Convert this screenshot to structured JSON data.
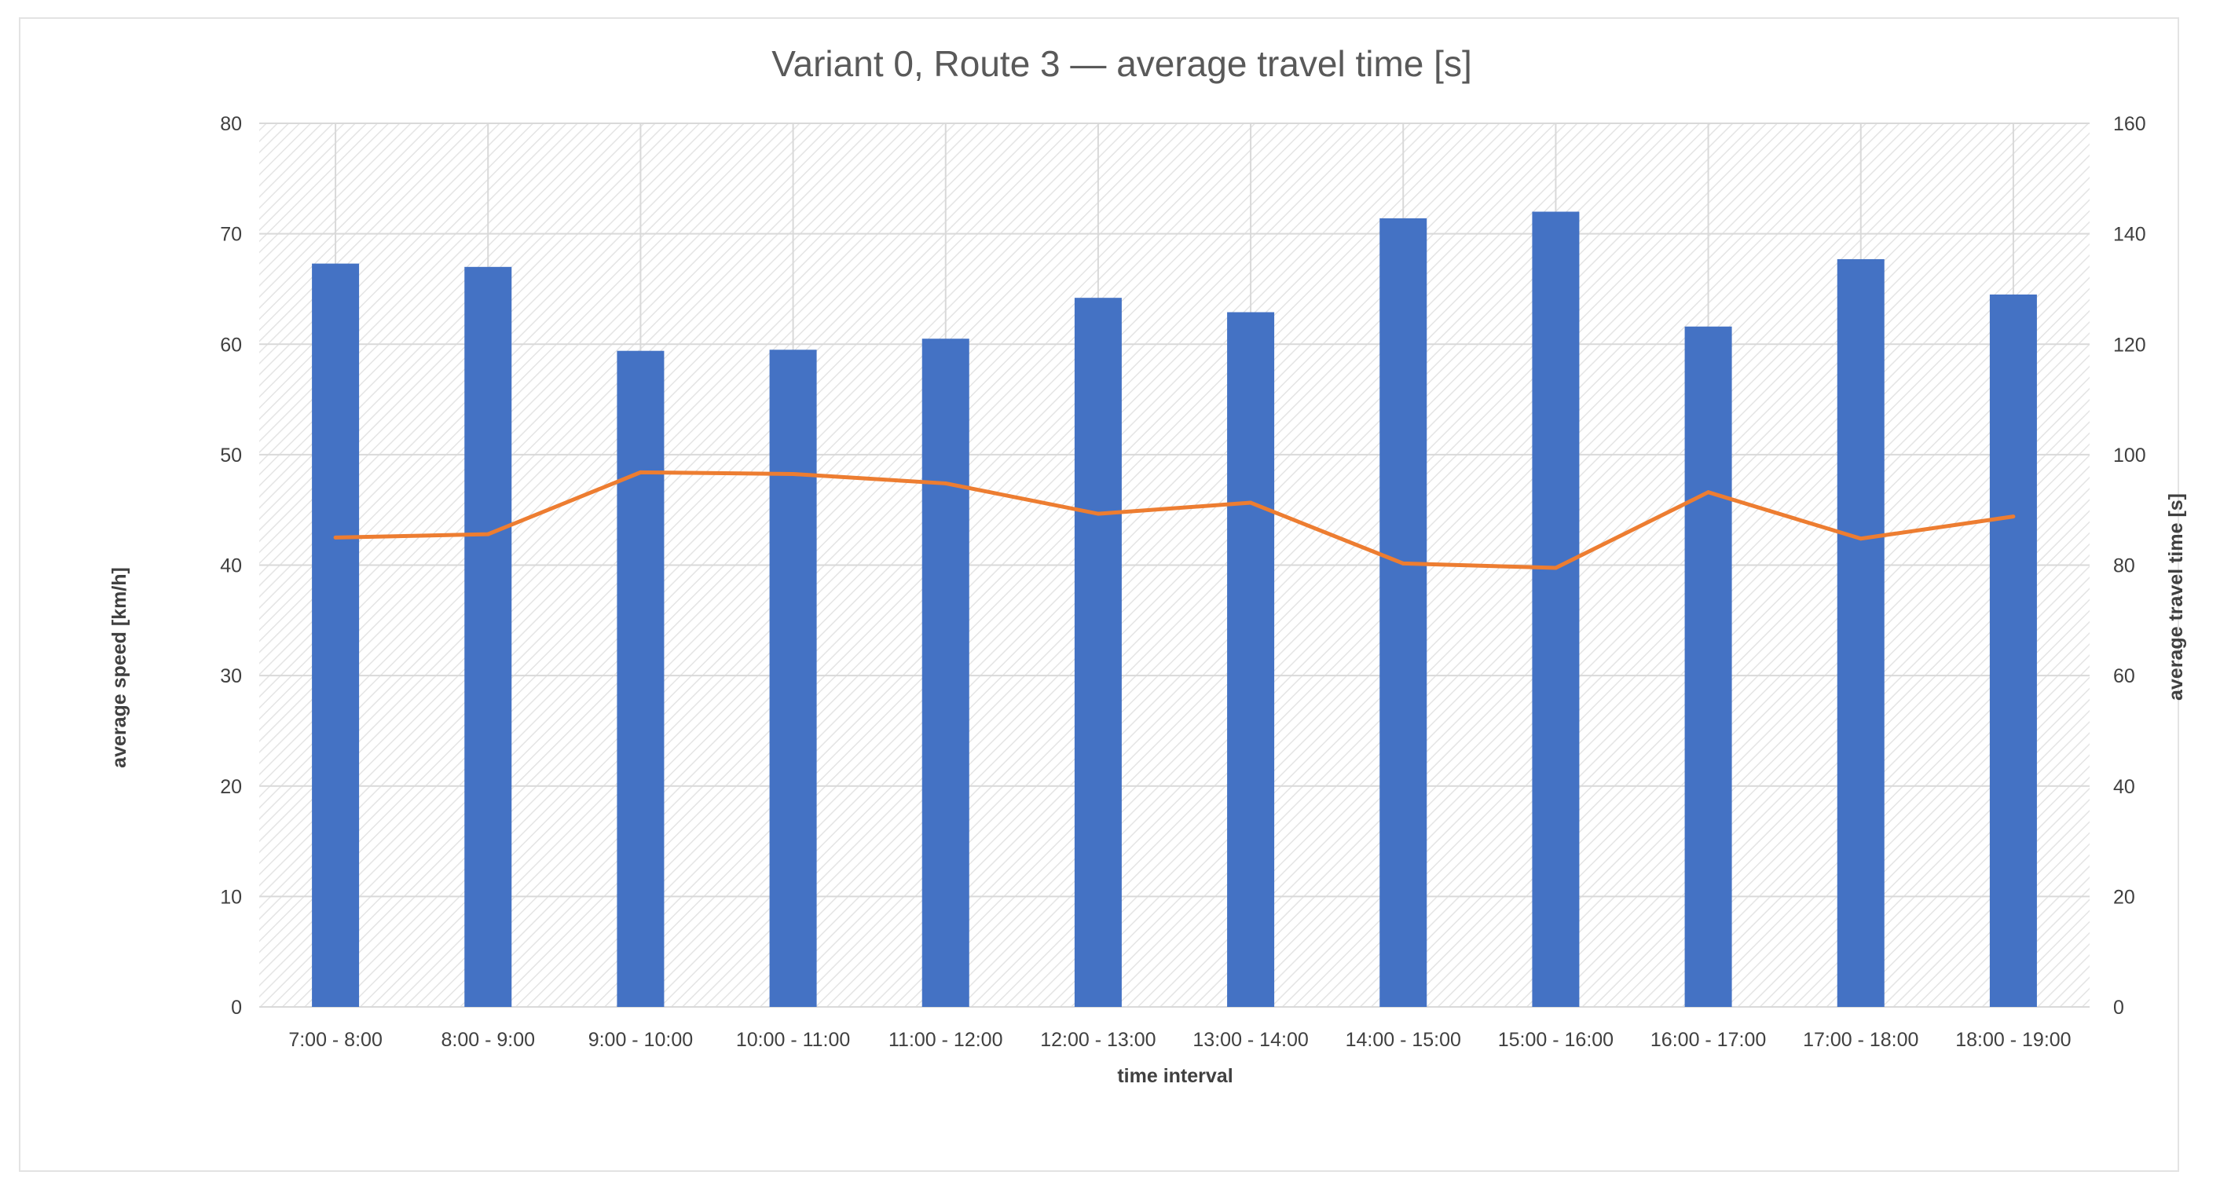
{
  "chart_data": {
    "type": "bar",
    "title": "Variant 0, Route 3 — average travel time [s]",
    "xlabel": "time interval",
    "ylabel": "average speed [km/h]",
    "y2label": "average travel time [s]",
    "ylim": [
      0,
      80
    ],
    "y2lim": [
      0,
      160
    ],
    "yticks": [
      "0",
      "10",
      "20",
      "30",
      "40",
      "50",
      "60",
      "70",
      "80"
    ],
    "y2ticks": [
      "0",
      "20",
      "40",
      "60",
      "80",
      "100",
      "120",
      "140",
      "160"
    ],
    "grid": true,
    "legend": "none",
    "categories": [
      "7:00 - 8:00",
      "8:00 - 9:00",
      "9:00 - 10:00",
      "10:00 - 11:00",
      "11:00 - 12:00",
      "12:00 - 13:00",
      "13:00 - 14:00",
      "14:00 - 15:00",
      "15:00 - 16:00",
      "16:00 - 17:00",
      "17:00 - 18:00",
      "18:00 - 19:00"
    ],
    "series": [
      {
        "type": "bar",
        "axis": "left",
        "color": "#4472c4",
        "values": [
          67.3,
          67.0,
          59.4,
          59.5,
          60.5,
          64.2,
          62.9,
          71.4,
          72.0,
          61.6,
          67.7,
          64.5
        ]
      },
      {
        "type": "line",
        "axis": "right",
        "color": "#ed7d31",
        "values": [
          85.0,
          85.6,
          96.8,
          96.5,
          94.8,
          89.3,
          91.3,
          80.3,
          79.5,
          93.2,
          84.8,
          88.8
        ]
      }
    ]
  }
}
